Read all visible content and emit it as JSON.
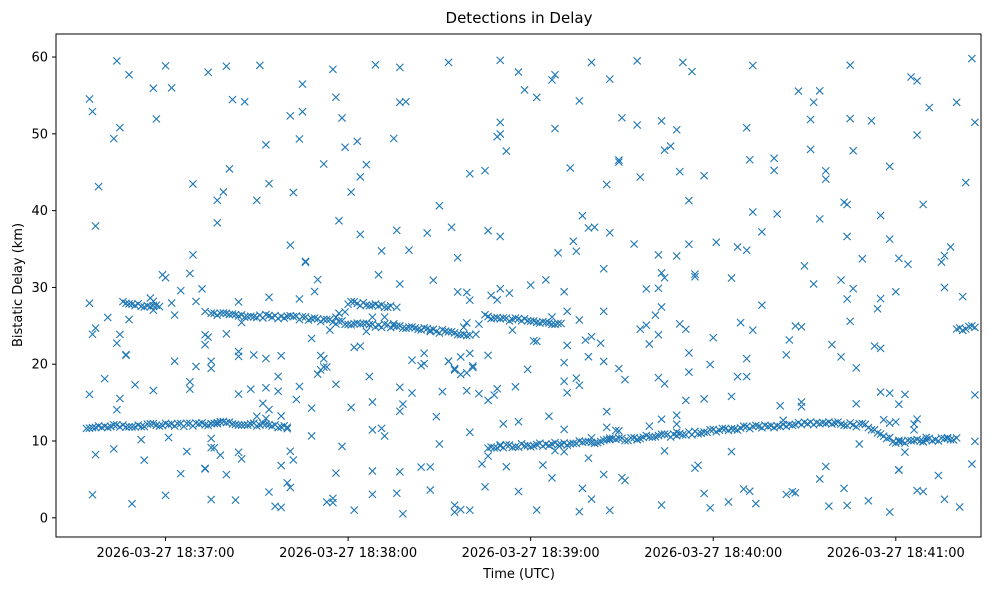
{
  "chart_data": {
    "type": "scatter",
    "title": "Detections in Delay",
    "xlabel": "Time (UTC)",
    "ylabel": "Bistatic Delay (km)",
    "marker": "x",
    "color": "#1f77b4",
    "grid": false,
    "xlim": [
      "2026-03-27 18:36:24",
      "2026-03-27 18:41:28"
    ],
    "ylim": [
      -2.5,
      63
    ],
    "xticks": [
      "2026-03-27 18:37:00",
      "2026-03-27 18:38:00",
      "2026-03-27 18:39:00",
      "2026-03-27 18:40:00",
      "2026-03-27 18:41:00"
    ],
    "yticks": [
      0,
      10,
      20,
      30,
      40,
      50,
      60
    ],
    "tracks": [
      {
        "name": "",
        "points": [
          [
            "2026-03-27 18:36:34",
            11.8
          ],
          [
            "2026-03-27 18:36:48",
            12.0
          ],
          [
            "2026-03-27 18:37:00",
            12.1
          ],
          [
            "2026-03-27 18:37:20",
            12.3
          ],
          [
            "2026-03-27 18:37:35",
            12.0
          ],
          [
            "2026-03-27 18:37:40",
            11.8
          ]
        ]
      },
      {
        "name": "",
        "points": [
          [
            "2026-03-27 18:36:46",
            27.9
          ],
          [
            "2026-03-27 18:36:58",
            27.5
          ]
        ]
      },
      {
        "name": "",
        "points": [
          [
            "2026-03-27 18:37:15",
            26.6
          ],
          [
            "2026-03-27 18:37:45",
            26.0
          ],
          [
            "2026-03-27 18:38:00",
            25.3
          ],
          [
            "2026-03-27 18:38:20",
            24.8
          ],
          [
            "2026-03-27 18:38:40",
            23.8
          ]
        ]
      },
      {
        "name": "",
        "points": [
          [
            "2026-03-27 18:38:00",
            28.0
          ],
          [
            "2026-03-27 18:38:14",
            27.6
          ]
        ]
      },
      {
        "name": "",
        "points": [
          [
            "2026-03-27 18:38:45",
            26.2
          ],
          [
            "2026-03-27 18:39:00",
            25.6
          ],
          [
            "2026-03-27 18:39:10",
            25.3
          ]
        ]
      },
      {
        "name": "",
        "points": [
          [
            "2026-03-27 18:38:46",
            9.2
          ],
          [
            "2026-03-27 18:39:10",
            9.6
          ],
          [
            "2026-03-27 18:39:30",
            10.2
          ],
          [
            "2026-03-27 18:39:50",
            10.9
          ],
          [
            "2026-03-27 18:40:10",
            11.7
          ],
          [
            "2026-03-27 18:40:35",
            12.4
          ],
          [
            "2026-03-27 18:40:50",
            12.0
          ],
          [
            "2026-03-27 18:41:00",
            9.8
          ],
          [
            "2026-03-27 18:41:20",
            10.4
          ]
        ]
      },
      {
        "name": "",
        "points": [
          [
            "2026-03-27 18:41:20",
            24.5
          ],
          [
            "2026-03-27 18:41:26",
            24.8
          ]
        ]
      }
    ],
    "isolated_points": [
      [
        "2026-03-27 18:36:36",
        52.9
      ],
      [
        "2026-03-27 18:36:36",
        3.0
      ],
      [
        "2026-03-27 18:36:37",
        38.0
      ],
      [
        "2026-03-27 18:36:44",
        59.5
      ],
      [
        "2026-03-27 18:36:48",
        57.7
      ],
      [
        "2026-03-27 18:37:20",
        58.8
      ],
      [
        "2026-03-27 18:37:23",
        2.3
      ],
      [
        "2026-03-27 18:37:55",
        58.4
      ],
      [
        "2026-03-27 18:38:09",
        59.0
      ],
      [
        "2026-03-27 18:38:04",
        44.4
      ],
      [
        "2026-03-27 18:38:02",
        1.0
      ],
      [
        "2026-03-27 18:38:16",
        3.2
      ],
      [
        "2026-03-27 18:38:33",
        59.3
      ],
      [
        "2026-03-27 18:38:40",
        1.0
      ],
      [
        "2026-03-27 18:39:08",
        57.7
      ],
      [
        "2026-03-27 18:39:16",
        0.8
      ],
      [
        "2026-03-27 18:39:35",
        59.5
      ],
      [
        "2026-03-27 18:39:50",
        59.3
      ],
      [
        "2026-03-27 18:39:59",
        1.3
      ],
      [
        "2026-03-27 18:40:13",
        58.9
      ],
      [
        "2026-03-27 18:40:26",
        3.4
      ],
      [
        "2026-03-27 18:40:35",
        55.6
      ],
      [
        "2026-03-27 18:40:44",
        1.6
      ],
      [
        "2026-03-27 18:41:05",
        57.4
      ],
      [
        "2026-03-27 18:41:09",
        40.8
      ],
      [
        "2026-03-27 18:41:20",
        54.1
      ],
      [
        "2026-03-27 18:41:25",
        59.8
      ],
      [
        "2026-03-27 18:41:26",
        51.5
      ],
      [
        "2026-03-27 18:41:26",
        16.0
      ],
      [
        "2026-03-27 18:41:25",
        7.0
      ]
    ],
    "scatter_noise": {
      "count": 460,
      "x_range": [
        "2026-03-27 18:36:34",
        "2026-03-27 18:41:26"
      ],
      "y_range": [
        0.5,
        60
      ]
    }
  }
}
